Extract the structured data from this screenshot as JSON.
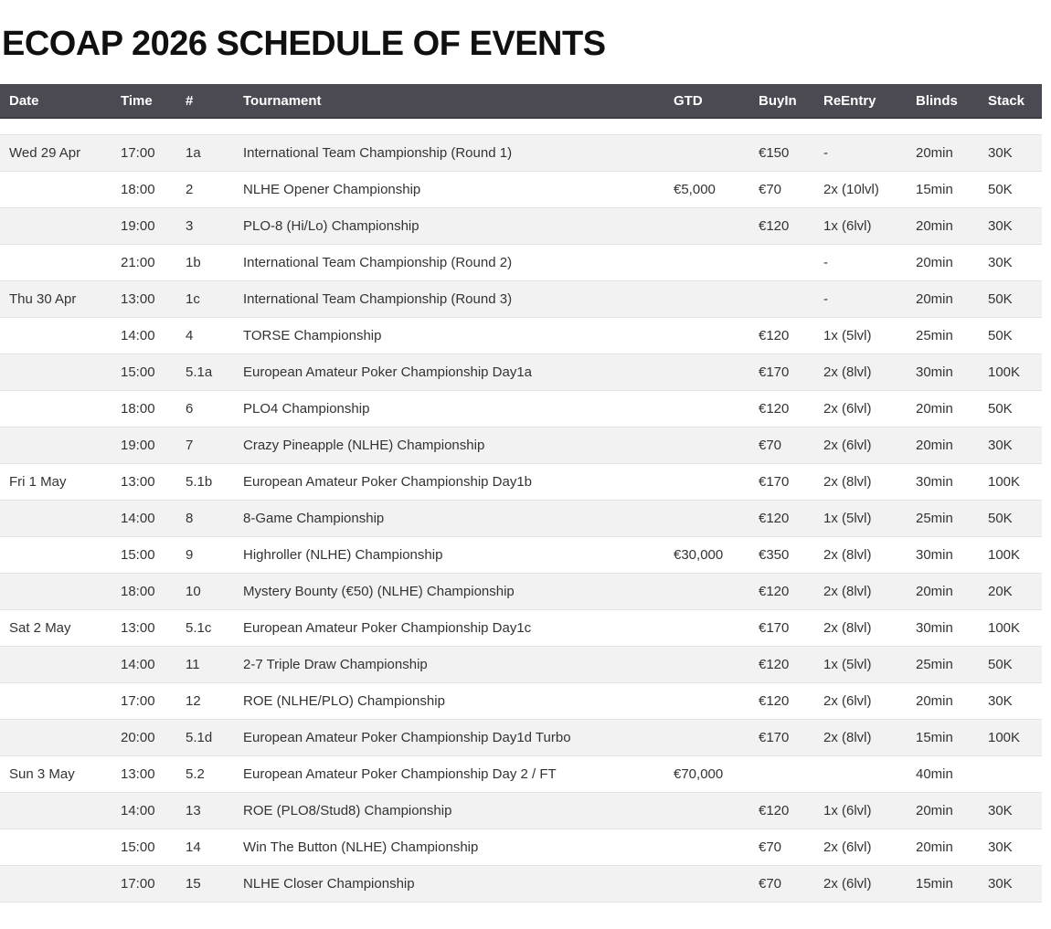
{
  "page": {
    "title": "ECOAP 2026 SCHEDULE OF EVENTS"
  },
  "colors": {
    "header_bg": "#4b4a53",
    "header_text": "#ffffff",
    "row_alt_bg": "#f2f2f2",
    "row_border": "#e2e2e2",
    "body_text": "#333333",
    "title_text": "#101010"
  },
  "table": {
    "columns": [
      "Date",
      "Time",
      "#",
      "Tournament",
      "GTD",
      "BuyIn",
      "ReEntry",
      "Blinds",
      "Stack"
    ],
    "rows": [
      {
        "date": "Wed 29 Apr",
        "time": "17:00",
        "num": "1a",
        "tournament": "International Team Championship (Round 1)",
        "gtd": "",
        "buyin": "€150",
        "reentry": "-",
        "blinds": "20min",
        "stack": "30K"
      },
      {
        "date": "",
        "time": "18:00",
        "num": "2",
        "tournament": "NLHE Opener Championship",
        "gtd": "€5,000",
        "buyin": "€70",
        "reentry": "2x (10lvl)",
        "blinds": "15min",
        "stack": "50K"
      },
      {
        "date": "",
        "time": "19:00",
        "num": "3",
        "tournament": "PLO-8 (Hi/Lo) Championship",
        "gtd": "",
        "buyin": "€120",
        "reentry": "1x (6lvl)",
        "blinds": "20min",
        "stack": "30K"
      },
      {
        "date": "",
        "time": "21:00",
        "num": "1b",
        "tournament": "International Team Championship (Round 2)",
        "gtd": "",
        "buyin": "",
        "reentry": "-",
        "blinds": "20min",
        "stack": "30K"
      },
      {
        "date": "Thu 30 Apr",
        "time": "13:00",
        "num": "1c",
        "tournament": "International Team Championship (Round 3)",
        "gtd": "",
        "buyin": "",
        "reentry": "-",
        "blinds": "20min",
        "stack": "50K"
      },
      {
        "date": "",
        "time": "14:00",
        "num": "4",
        "tournament": "TORSE Championship",
        "gtd": "",
        "buyin": "€120",
        "reentry": "1x (5lvl)",
        "blinds": "25min",
        "stack": "50K"
      },
      {
        "date": "",
        "time": "15:00",
        "num": "5.1a",
        "tournament": "European Amateur Poker Championship Day1a",
        "gtd": "",
        "buyin": "€170",
        "reentry": "2x (8lvl)",
        "blinds": "30min",
        "stack": "100K"
      },
      {
        "date": "",
        "time": "18:00",
        "num": "6",
        "tournament": "PLO4 Championship",
        "gtd": "",
        "buyin": "€120",
        "reentry": "2x (6lvl)",
        "blinds": "20min",
        "stack": "50K"
      },
      {
        "date": "",
        "time": "19:00",
        "num": "7",
        "tournament": "Crazy Pineapple (NLHE) Championship",
        "gtd": "",
        "buyin": "€70",
        "reentry": "2x (6lvl)",
        "blinds": "20min",
        "stack": "30K"
      },
      {
        "date": "Fri 1 May",
        "time": "13:00",
        "num": "5.1b",
        "tournament": "European Amateur Poker Championship Day1b",
        "gtd": "",
        "buyin": "€170",
        "reentry": "2x (8lvl)",
        "blinds": "30min",
        "stack": "100K"
      },
      {
        "date": "",
        "time": "14:00",
        "num": "8",
        "tournament": "8-Game Championship",
        "gtd": "",
        "buyin": "€120",
        "reentry": "1x (5lvl)",
        "blinds": "25min",
        "stack": "50K"
      },
      {
        "date": "",
        "time": "15:00",
        "num": "9",
        "tournament": "Highroller (NLHE) Championship",
        "gtd": "€30,000",
        "buyin": "€350",
        "reentry": "2x (8lvl)",
        "blinds": "30min",
        "stack": "100K"
      },
      {
        "date": "",
        "time": "18:00",
        "num": "10",
        "tournament": "Mystery Bounty (€50) (NLHE) Championship",
        "gtd": "",
        "buyin": "€120",
        "reentry": "2x (8lvl)",
        "blinds": "20min",
        "stack": "20K"
      },
      {
        "date": "Sat 2 May",
        "time": "13:00",
        "num": "5.1c",
        "tournament": "European Amateur Poker Championship Day1c",
        "gtd": "",
        "buyin": "€170",
        "reentry": "2x (8lvl)",
        "blinds": "30min",
        "stack": "100K"
      },
      {
        "date": "",
        "time": "14:00",
        "num": "11",
        "tournament": "2-7 Triple Draw Championship",
        "gtd": "",
        "buyin": "€120",
        "reentry": "1x (5lvl)",
        "blinds": "25min",
        "stack": "50K"
      },
      {
        "date": "",
        "time": "17:00",
        "num": "12",
        "tournament": "ROE (NLHE/PLO) Championship",
        "gtd": "",
        "buyin": "€120",
        "reentry": "2x (6lvl)",
        "blinds": "20min",
        "stack": "30K"
      },
      {
        "date": "",
        "time": "20:00",
        "num": "5.1d",
        "tournament": "European Amateur Poker Championship Day1d Turbo",
        "gtd": "",
        "buyin": "€170",
        "reentry": "2x (8lvl)",
        "blinds": "15min",
        "stack": "100K"
      },
      {
        "date": "Sun 3 May",
        "time": "13:00",
        "num": "5.2",
        "tournament": "European Amateur Poker Championship Day 2 / FT",
        "gtd": "€70,000",
        "buyin": "",
        "reentry": "",
        "blinds": "40min",
        "stack": ""
      },
      {
        "date": "",
        "time": "14:00",
        "num": "13",
        "tournament": "ROE (PLO8/Stud8) Championship",
        "gtd": "",
        "buyin": "€120",
        "reentry": "1x (6lvl)",
        "blinds": "20min",
        "stack": "30K"
      },
      {
        "date": "",
        "time": "15:00",
        "num": "14",
        "tournament": "Win The Button (NLHE) Championship",
        "gtd": "",
        "buyin": "€70",
        "reentry": "2x (6lvl)",
        "blinds": "20min",
        "stack": "30K"
      },
      {
        "date": "",
        "time": "17:00",
        "num": "15",
        "tournament": "NLHE Closer Championship",
        "gtd": "",
        "buyin": "€70",
        "reentry": "2x (6lvl)",
        "blinds": "15min",
        "stack": "30K"
      }
    ]
  }
}
